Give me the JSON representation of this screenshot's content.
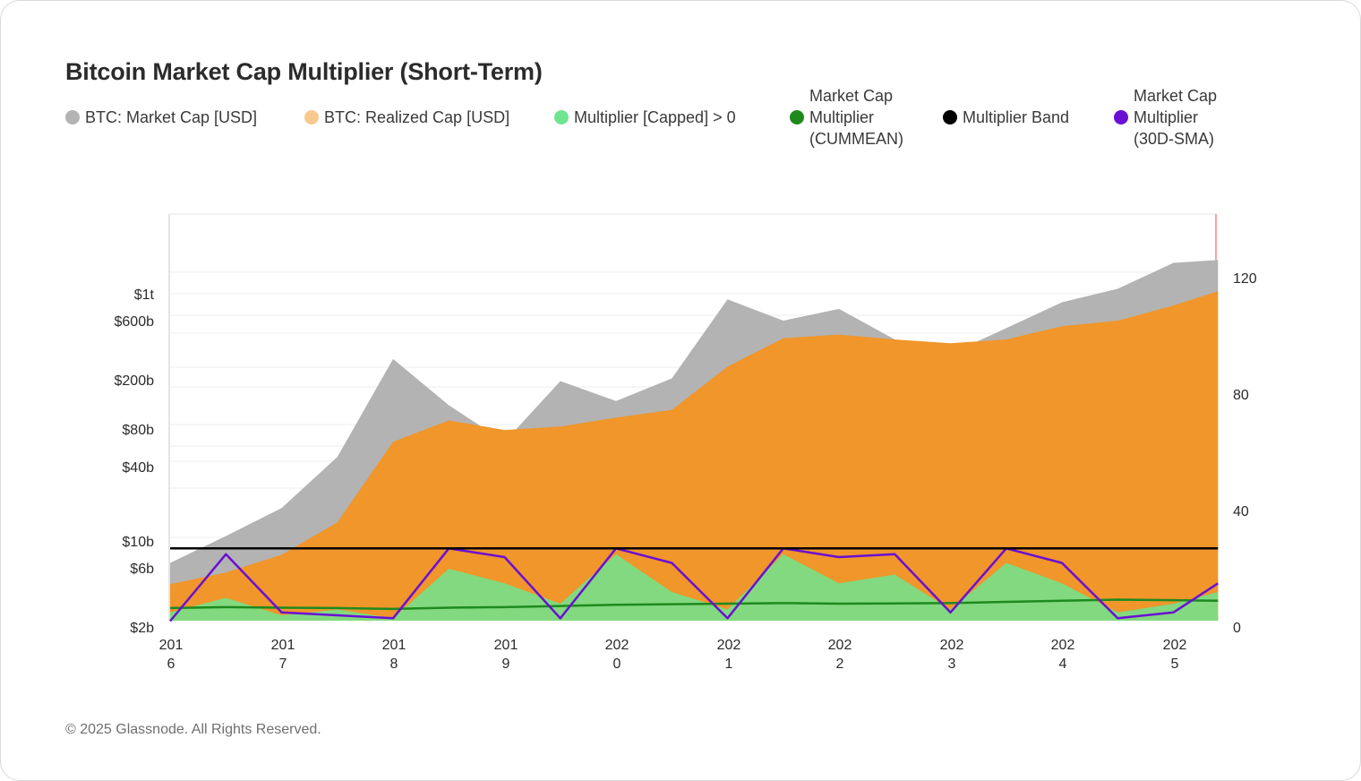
{
  "title": "Bitcoin Market Cap Multiplier (Short-Term)",
  "footer": "© 2025 Glassnode. All Rights Reserved.",
  "legend": [
    {
      "label": "BTC: Market Cap [USD]",
      "color": "#b3b3b3"
    },
    {
      "label": "BTC: Realized Cap [USD]",
      "color": "#f7c98f"
    },
    {
      "label": "Multiplier [Capped] > 0",
      "color": "#6ee58e"
    },
    {
      "label": "Market Cap\nMultiplier\n(CUMMEAN)",
      "color": "#1e8a1e"
    },
    {
      "label": "Multiplier Band",
      "color": "#000000"
    },
    {
      "label": "Market Cap\nMultiplier\n(30D-SMA)",
      "color": "#6a0fd4"
    }
  ],
  "chart_data": {
    "type": "area",
    "x_ticks": [
      "201\n6",
      "201\n7",
      "201\n8",
      "201\n9",
      "202\n0",
      "202\n1",
      "202\n2",
      "202\n3",
      "202\n4",
      "202\n5"
    ],
    "y_left_ticks": [
      "$1t",
      "$600b",
      "$200b",
      "$80b",
      "$40b",
      "$10b",
      "$6b",
      "$2b"
    ],
    "y_left_scale": "log",
    "y_right_ticks": [
      "120",
      "80",
      "40",
      "0"
    ],
    "y_right_range": [
      0,
      140
    ],
    "years": [
      2016.0,
      2016.5,
      2017.0,
      2017.5,
      2018.0,
      2018.5,
      2019.0,
      2019.5,
      2020.0,
      2020.5,
      2021.0,
      2021.5,
      2022.0,
      2022.5,
      2023.0,
      2023.5,
      2024.0,
      2024.5,
      2025.0,
      2025.4
    ],
    "series": [
      {
        "name": "BTC: Market Cap [USD]",
        "color": "#b3b3b3",
        "scale": "left",
        "values_usd_b": [
          6,
          10,
          17,
          45,
          290,
          120,
          60,
          190,
          130,
          200,
          900,
          600,
          750,
          420,
          320,
          520,
          850,
          1100,
          1800,
          1900
        ]
      },
      {
        "name": "BTC: Realized Cap [USD]",
        "color": "#f0962a",
        "scale": "left",
        "values_usd_b": [
          4,
          5,
          7,
          13,
          60,
          90,
          75,
          80,
          95,
          110,
          250,
          430,
          460,
          420,
          390,
          420,
          540,
          600,
          800,
          1050
        ]
      },
      {
        "name": "Multiplier Band",
        "color": "#000000",
        "scale": "right",
        "values": [
          27,
          27,
          27,
          27,
          27,
          27,
          27,
          27,
          27,
          27,
          27,
          27,
          27,
          27,
          27,
          27,
          27,
          27,
          27,
          27
        ]
      },
      {
        "name": "Market Cap Multiplier (CUMMEAN)",
        "color": "#1e8a1e",
        "scale": "right",
        "values": [
          6.5,
          6.8,
          6.6,
          6.5,
          6.2,
          6.6,
          6.8,
          7.2,
          7.6,
          7.8,
          8.0,
          8.2,
          8.0,
          8.1,
          8.2,
          8.6,
          9.0,
          9.4,
          9.2,
          9.0
        ]
      },
      {
        "name": "Market Cap Multiplier (30D-SMA)",
        "color": "#6a0fd4",
        "scale": "right",
        "values": [
          2,
          25,
          5,
          4,
          3,
          27,
          24,
          3,
          27,
          22,
          3,
          27,
          24,
          25,
          5,
          27,
          22,
          3,
          5,
          15
        ]
      },
      {
        "name": "Multiplier [Capped] > 0",
        "color": "#6ee58e",
        "scale": "right",
        "values": [
          5,
          10,
          4,
          6,
          3,
          20,
          15,
          8,
          25,
          12,
          6,
          25,
          15,
          18,
          6,
          22,
          15,
          5,
          8,
          12
        ]
      }
    ]
  }
}
